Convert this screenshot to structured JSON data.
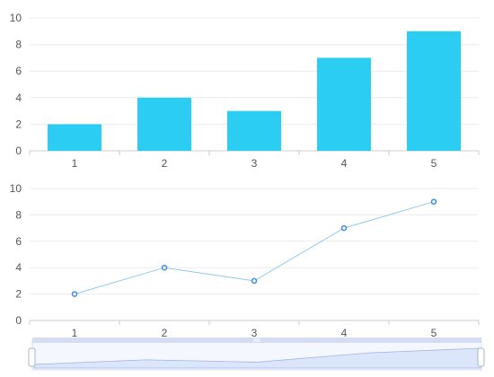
{
  "chart_data": [
    {
      "type": "bar",
      "categories": [
        "1",
        "2",
        "3",
        "4",
        "5"
      ],
      "values": [
        2,
        4,
        3,
        7,
        9
      ],
      "ylim": [
        0,
        10
      ],
      "yticks": [
        "0",
        "2",
        "4",
        "6",
        "8",
        "10"
      ],
      "grid": true,
      "color": "#2ccdf2"
    },
    {
      "type": "line",
      "categories": [
        "1",
        "2",
        "3",
        "4",
        "5"
      ],
      "values": [
        2,
        4,
        3,
        7,
        9
      ],
      "ylim": [
        0,
        10
      ],
      "yticks": [
        "0",
        "2",
        "4",
        "6",
        "8",
        "10"
      ],
      "grid": true,
      "color": "#8ec8f0",
      "marker_color": "#3a8ee6"
    }
  ],
  "data_zoom": {
    "range": [
      0,
      1
    ],
    "fill_color": "#dbe6fb",
    "handle_color": "#ffffff"
  }
}
